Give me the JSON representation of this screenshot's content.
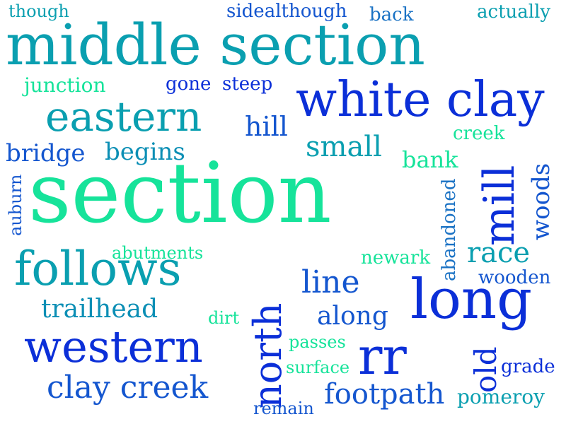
{
  "words": [
    {
      "text": "middle section",
      "color": "teal"
    },
    {
      "text": "section",
      "color": "green"
    },
    {
      "text": "white clay",
      "color": "blue"
    },
    {
      "text": "eastern",
      "color": "teal"
    },
    {
      "text": "follows",
      "color": "teal"
    },
    {
      "text": "western",
      "color": "blue"
    },
    {
      "text": "long",
      "color": "blue"
    },
    {
      "text": "north",
      "color": "blue"
    },
    {
      "text": "mill",
      "color": "blue"
    },
    {
      "text": "rr",
      "color": "blue"
    },
    {
      "text": "clay creek",
      "color": "blue"
    },
    {
      "text": "small",
      "color": "teal"
    },
    {
      "text": "bridge",
      "color": "blue"
    },
    {
      "text": "begins",
      "color": "teal"
    },
    {
      "text": "hill",
      "color": "blue"
    },
    {
      "text": "trailhead",
      "color": "teal"
    },
    {
      "text": "line",
      "color": "blue"
    },
    {
      "text": "along",
      "color": "blue"
    },
    {
      "text": "race",
      "color": "teal"
    },
    {
      "text": "footpath",
      "color": "blue"
    },
    {
      "text": "old",
      "color": "blue"
    },
    {
      "text": "woods",
      "color": "blue"
    },
    {
      "text": "junction",
      "color": "green"
    },
    {
      "text": "though",
      "color": "teal"
    },
    {
      "text": "sidealthough",
      "color": "blue"
    },
    {
      "text": "back",
      "color": "blue"
    },
    {
      "text": "actually",
      "color": "teal"
    },
    {
      "text": "gone",
      "color": "blue"
    },
    {
      "text": "steep",
      "color": "blue"
    },
    {
      "text": "creek",
      "color": "green"
    },
    {
      "text": "bank",
      "color": "green"
    },
    {
      "text": "auburn",
      "color": "blue"
    },
    {
      "text": "abandoned",
      "color": "blue"
    },
    {
      "text": "abutments",
      "color": "green"
    },
    {
      "text": "newark",
      "color": "green"
    },
    {
      "text": "wooden",
      "color": "blue"
    },
    {
      "text": "dirt",
      "color": "green"
    },
    {
      "text": "passes",
      "color": "green"
    },
    {
      "text": "surface",
      "color": "green"
    },
    {
      "text": "remain",
      "color": "blue"
    },
    {
      "text": "grade",
      "color": "blue"
    },
    {
      "text": "pomeroy",
      "color": "teal"
    }
  ]
}
